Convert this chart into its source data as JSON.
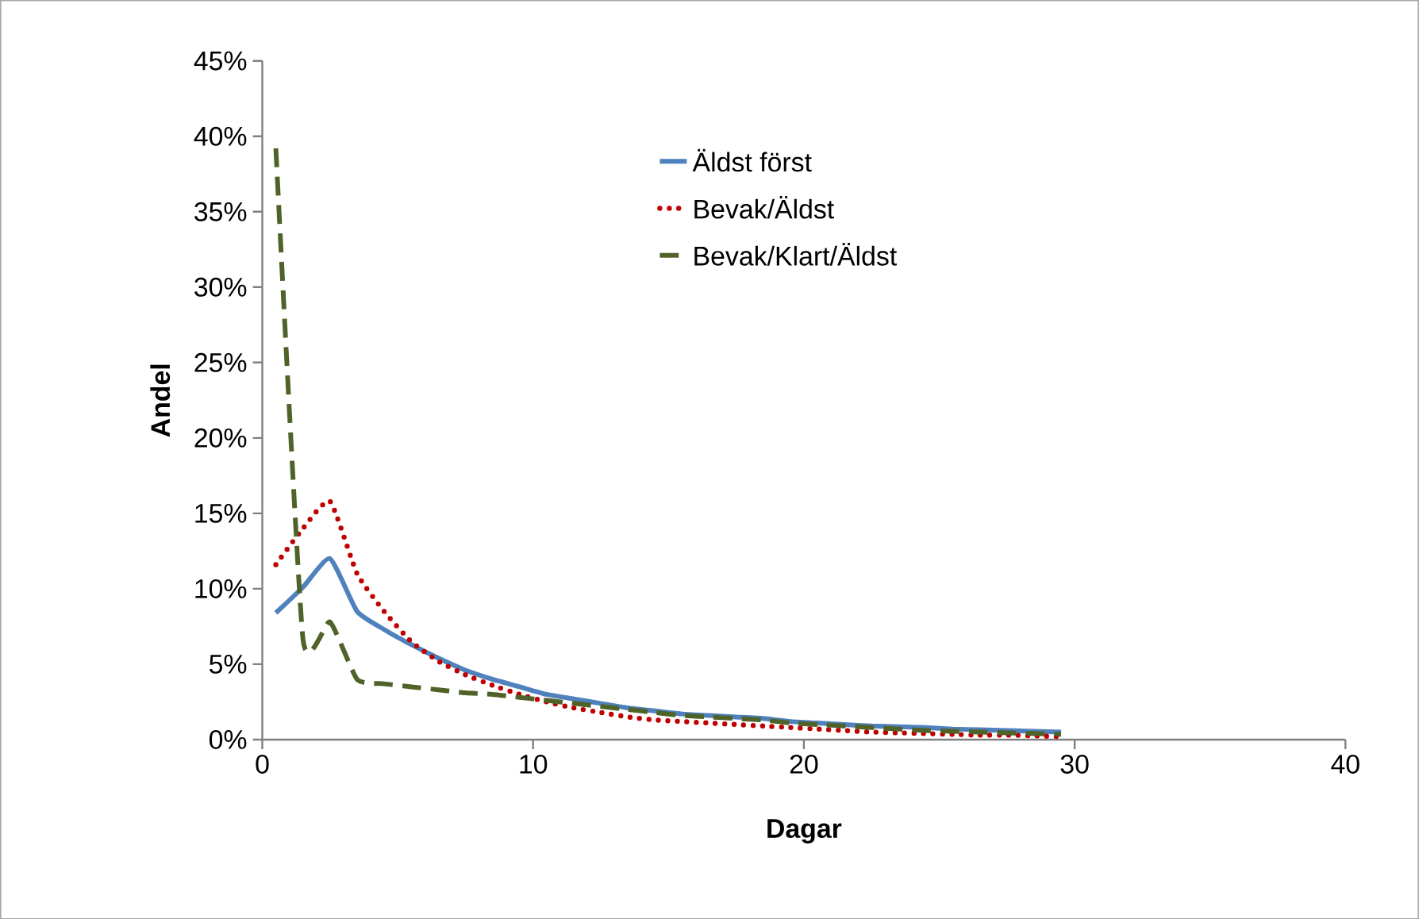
{
  "chart_data": {
    "type": "line",
    "xlabel": "Dagar",
    "ylabel": "Andel",
    "x": [
      0.5,
      1.5,
      2.5,
      3.5,
      4.5,
      5.5,
      6.5,
      7.5,
      8.5,
      9.5,
      10.5,
      11.5,
      12.5,
      13.5,
      14.5,
      15.5,
      16.5,
      17.5,
      18.5,
      19.5,
      20.5,
      21.5,
      22.5,
      23.5,
      24.5,
      25.5,
      26.5,
      27.5,
      28.5,
      29.5
    ],
    "series": [
      {
        "name": "Äldst först",
        "color": "#4f81bd",
        "line_style": "solid",
        "values": [
          8.4,
          10.1,
          12.0,
          8.5,
          7.3,
          6.3,
          5.4,
          4.6,
          4.0,
          3.5,
          3.0,
          2.7,
          2.4,
          2.1,
          1.9,
          1.7,
          1.6,
          1.5,
          1.4,
          1.2,
          1.1,
          1.0,
          0.9,
          0.85,
          0.8,
          0.7,
          0.65,
          0.6,
          0.55,
          0.5
        ]
      },
      {
        "name": "Bevak/Äldst",
        "color": "#c00000",
        "line_style": "dotted",
        "values": [
          11.6,
          14.0,
          15.8,
          11.0,
          8.5,
          6.5,
          5.2,
          4.3,
          3.6,
          3.0,
          2.5,
          2.1,
          1.8,
          1.5,
          1.3,
          1.2,
          1.1,
          1.0,
          0.9,
          0.8,
          0.7,
          0.6,
          0.5,
          0.45,
          0.4,
          0.35,
          0.3,
          0.3,
          0.25,
          0.2
        ]
      },
      {
        "name": "Bevak/Klart/Äldst",
        "color": "#4f6228",
        "line_style": "dashed",
        "values": [
          39.2,
          6.7,
          7.8,
          4.0,
          3.7,
          3.5,
          3.3,
          3.1,
          3.0,
          2.8,
          2.6,
          2.4,
          2.2,
          2.0,
          1.8,
          1.6,
          1.5,
          1.4,
          1.3,
          1.1,
          1.0,
          0.9,
          0.8,
          0.7,
          0.6,
          0.55,
          0.5,
          0.45,
          0.4,
          0.35
        ]
      }
    ],
    "xlim": [
      0,
      40
    ],
    "xticks": [
      0,
      10,
      20,
      30,
      40
    ],
    "ylim": [
      0,
      45
    ],
    "yticks": [
      {
        "value": 0,
        "label": "0%"
      },
      {
        "value": 5,
        "label": "5%"
      },
      {
        "value": 10,
        "label": "10%"
      },
      {
        "value": 15,
        "label": "15%"
      },
      {
        "value": 20,
        "label": "20%"
      },
      {
        "value": 25,
        "label": "25%"
      },
      {
        "value": 30,
        "label": "30%"
      },
      {
        "value": 35,
        "label": "35%"
      },
      {
        "value": 40,
        "label": "40%"
      },
      {
        "value": 45,
        "label": "45%"
      }
    ],
    "legend": "top right",
    "grid": false,
    "marker": "none"
  }
}
